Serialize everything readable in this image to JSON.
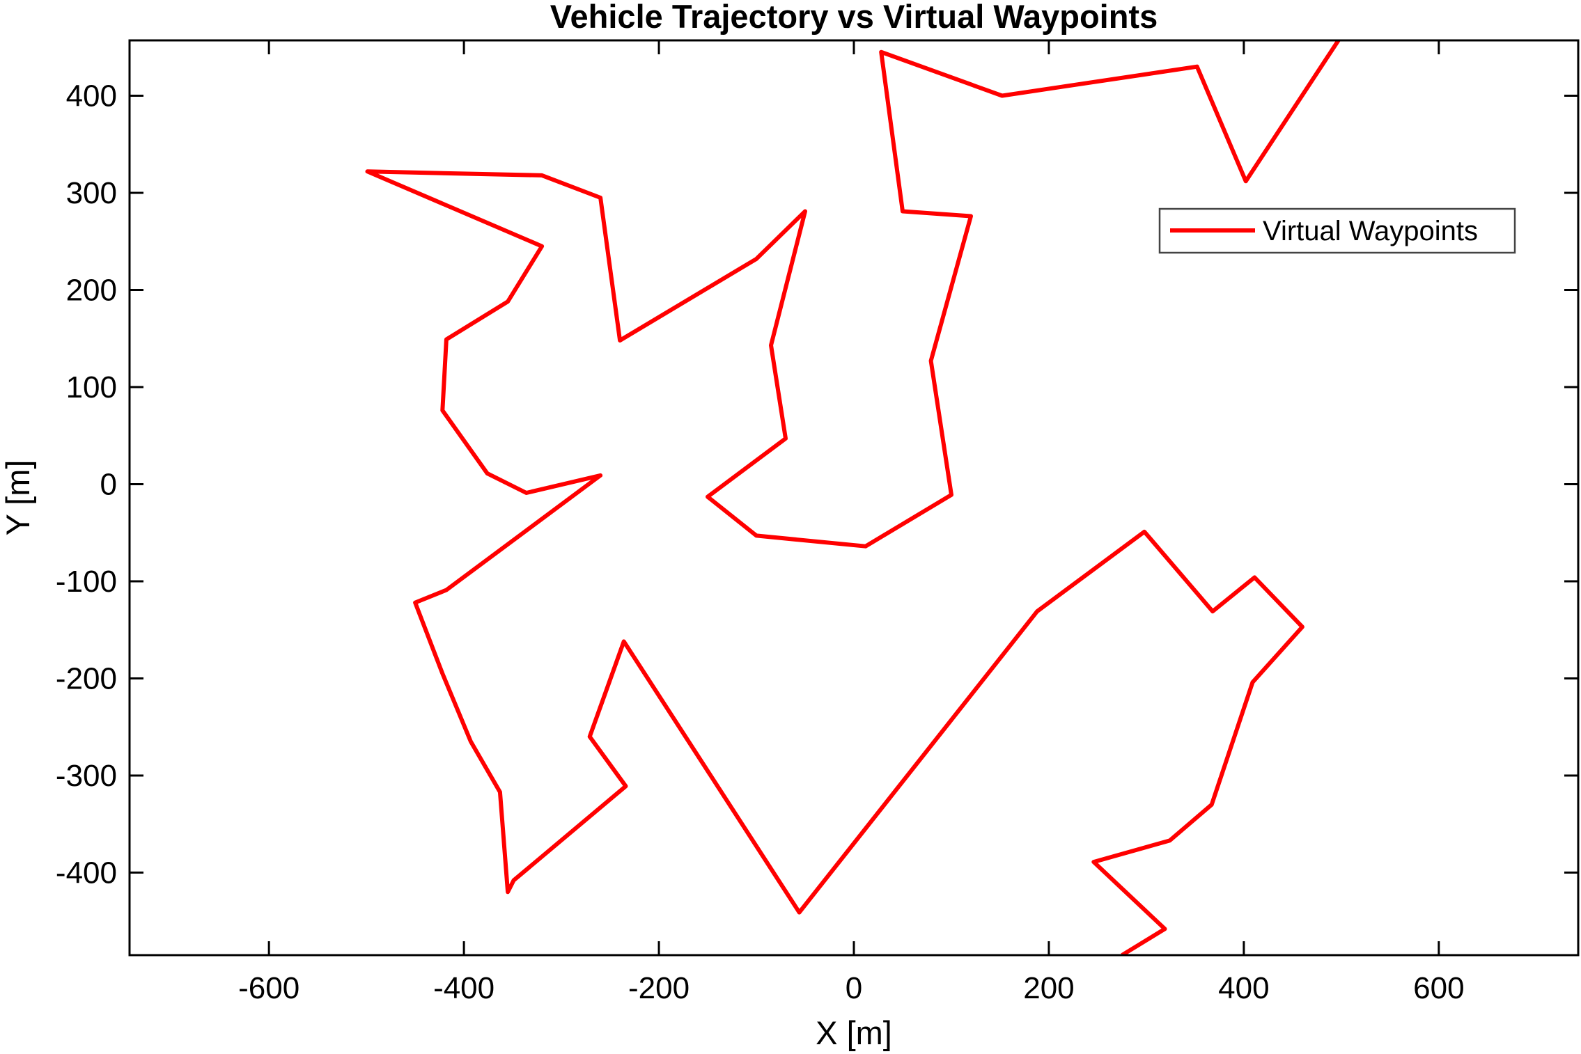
{
  "chart_data": {
    "type": "line",
    "title": "Vehicle Trajectory vs Virtual Waypoints",
    "xlabel": "X [m]",
    "ylabel": "Y [m]",
    "xlim": [
      -743,
      743
    ],
    "ylim": [
      -485,
      457
    ],
    "xticks": [
      -600,
      -400,
      -200,
      0,
      200,
      400,
      600
    ],
    "yticks": [
      -400,
      -300,
      -200,
      -100,
      0,
      100,
      200,
      300,
      400
    ],
    "grid": false,
    "legend": {
      "position": "top-right",
      "entries": [
        "Virtual Waypoints"
      ]
    },
    "series": [
      {
        "name": "Virtual Waypoints",
        "color": "#ff0000",
        "points": [
          [
            497,
            457
          ],
          [
            402,
            312
          ],
          [
            352,
            430
          ],
          [
            152,
            400
          ],
          [
            28,
            445
          ],
          [
            50,
            281
          ],
          [
            120,
            276
          ],
          [
            79,
            127
          ],
          [
            100,
            -11
          ],
          [
            12,
            -64
          ],
          [
            -100,
            -53
          ],
          [
            -150,
            -13
          ],
          [
            -70,
            47
          ],
          [
            -85,
            143
          ],
          [
            -50,
            281
          ],
          [
            -100,
            232
          ],
          [
            -240,
            148
          ],
          [
            -260,
            295
          ],
          [
            -320,
            318
          ],
          [
            -499,
            322
          ],
          [
            -320,
            245
          ],
          [
            -355,
            188
          ],
          [
            -418,
            149
          ],
          [
            -422,
            76
          ],
          [
            -376,
            11
          ],
          [
            -336,
            -9
          ],
          [
            -260,
            9
          ],
          [
            -418,
            -109
          ],
          [
            -450,
            -122
          ],
          [
            -422,
            -195
          ],
          [
            -393,
            -265
          ],
          [
            -363,
            -317
          ],
          [
            -355,
            -420
          ],
          [
            -349,
            -408
          ],
          [
            -234,
            -311
          ],
          [
            -271,
            -260
          ],
          [
            -236,
            -162
          ],
          [
            -56,
            -441
          ],
          [
            188,
            -131
          ],
          [
            298,
            -49
          ],
          [
            368,
            -131
          ],
          [
            411,
            -96
          ],
          [
            460,
            -147
          ],
          [
            409,
            -204
          ],
          [
            367,
            -330
          ],
          [
            324,
            -367
          ],
          [
            246,
            -389
          ],
          [
            319,
            -458
          ],
          [
            275,
            -485
          ]
        ]
      }
    ]
  }
}
